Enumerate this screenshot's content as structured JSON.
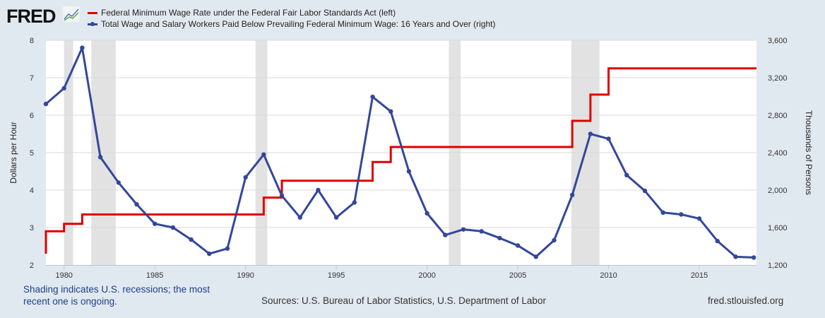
{
  "header": {
    "logo": "FRED"
  },
  "colors": {
    "red": "#e00000",
    "blue": "#33479a",
    "recession": "#e2e2e2",
    "background": "#e1e9f0"
  },
  "chart_data": {
    "type": "line",
    "x_label": "",
    "xlim": [
      1979,
      2018.15
    ],
    "x_ticks": [
      1980,
      1985,
      1990,
      1995,
      2000,
      2005,
      2010,
      2015
    ],
    "left_axis": {
      "label": "Dollars per Hour",
      "ylim": [
        2,
        8
      ],
      "ticks": [
        "2",
        "3",
        "4",
        "5",
        "6",
        "7",
        "8"
      ]
    },
    "right_axis": {
      "label": "Thousands of Persons",
      "ylim": [
        1200,
        3600
      ],
      "ticks": [
        "1,200",
        "1,600",
        "2,000",
        "2,400",
        "2,800",
        "3,200",
        "3,600"
      ]
    },
    "grid": true,
    "legend_position": "top",
    "recessions": [
      [
        1980.0,
        1980.5
      ],
      [
        1981.5,
        1982.85
      ],
      [
        1990.55,
        1991.2
      ],
      [
        2001.2,
        2001.85
      ],
      [
        2007.95,
        2009.5
      ]
    ],
    "series": [
      {
        "name": "Federal Minimum Wage Rate under the Federal Fair Labor Standards Act (left)",
        "axis": "left",
        "style": "step",
        "start_value": 2.3,
        "x": [
          1979,
          1980,
          1981,
          1991,
          1992,
          1997,
          1998,
          2008,
          2009,
          2010,
          2018.15
        ],
        "values": [
          2.9,
          3.1,
          3.35,
          3.8,
          4.25,
          4.75,
          5.15,
          5.85,
          6.55,
          7.25,
          7.25
        ]
      },
      {
        "name": "Total Wage and Salary Workers Paid Below Prevailing Federal Minimum Wage: 16 Years and Over (right)",
        "axis": "right",
        "style": "line-markers",
        "x": [
          1979,
          1980,
          1981,
          1982,
          1983,
          1984,
          1985,
          1986,
          1987,
          1988,
          1989,
          1990,
          1991,
          1992,
          1993,
          1994,
          1995,
          1996,
          1997,
          1998,
          1999,
          2000,
          2001,
          2002,
          2003,
          2004,
          2005,
          2006,
          2007,
          2008,
          2009,
          2010,
          2011,
          2012,
          2013,
          2014,
          2015,
          2016,
          2017,
          2018
        ],
        "values": [
          2920,
          3088,
          3520,
          2352,
          2080,
          1848,
          1640,
          1600,
          1472,
          1320,
          1376,
          2136,
          2380,
          1940,
          1708,
          2000,
          1708,
          1868,
          2996,
          2840,
          2200,
          1752,
          1520,
          1580,
          1560,
          1488,
          1408,
          1288,
          1464,
          1948,
          2600,
          2548,
          2160,
          1992,
          1760,
          1740,
          1696,
          1456,
          1288,
          1280
        ]
      }
    ]
  },
  "footer": {
    "note": "Shading indicates U.S. recessions; the most recent one is ongoing.",
    "sources": "Sources: U.S. Bureau of Labor Statistics, U.S. Department of Labor",
    "url": "fred.stlouisfed.org"
  }
}
